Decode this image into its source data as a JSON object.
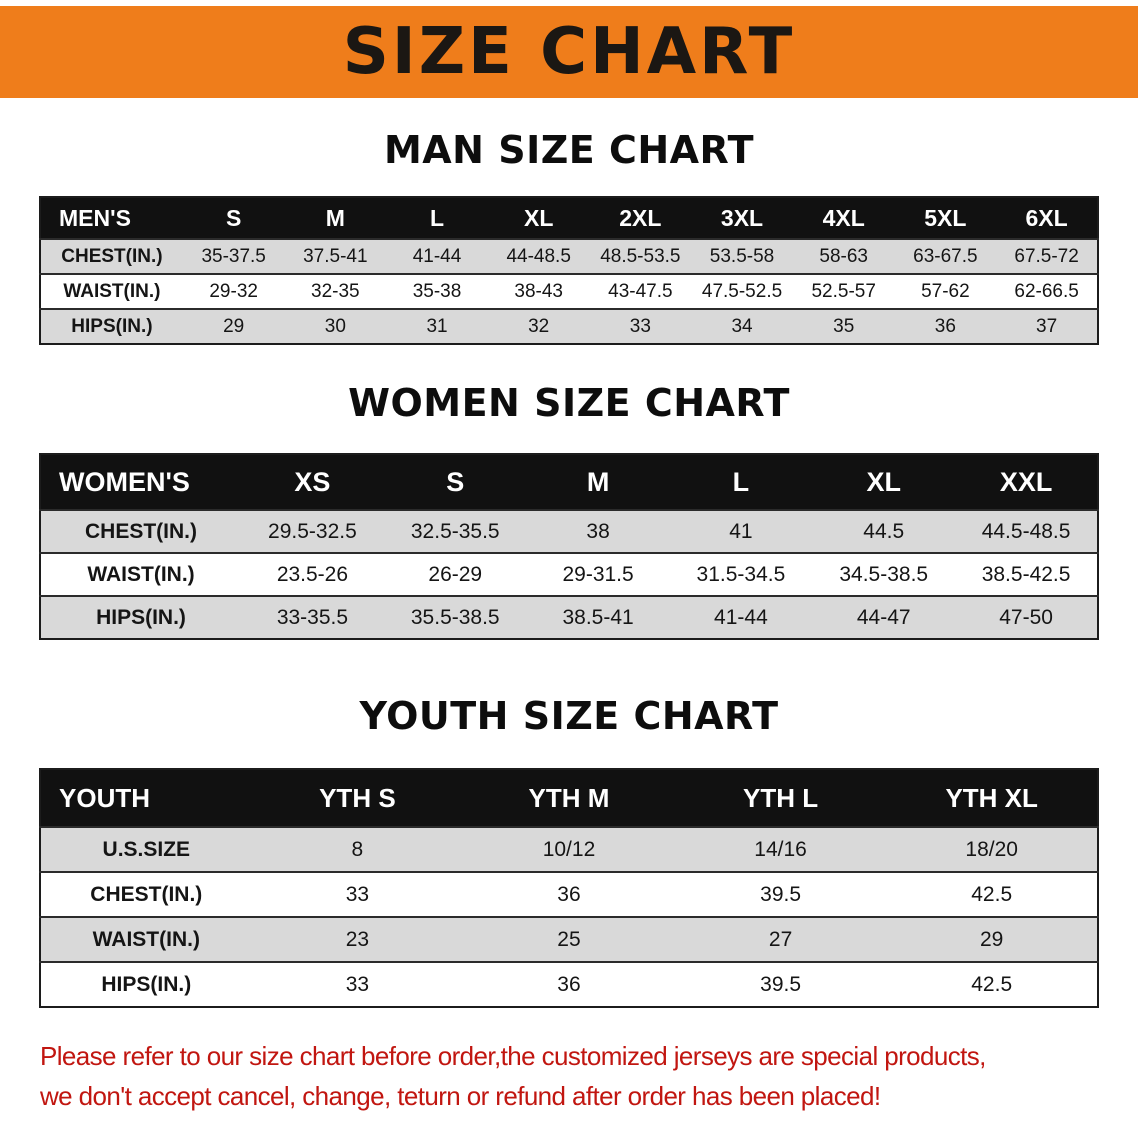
{
  "banner": {
    "title": "SIZE CHART"
  },
  "sections": [
    {
      "heading": "MAN SIZE CHART",
      "table": {
        "header": [
          "MEN'S",
          "S",
          "M",
          "L",
          "XL",
          "2XL",
          "3XL",
          "4XL",
          "5XL",
          "6XL"
        ],
        "rows": [
          [
            "CHEST(IN.)",
            "35-37.5",
            "37.5-41",
            "41-44",
            "44-48.5",
            "48.5-53.5",
            "53.5-58",
            "58-63",
            "63-67.5",
            "67.5-72"
          ],
          [
            "WAIST(IN.)",
            "29-32",
            "32-35",
            "35-38",
            "38-43",
            "43-47.5",
            "47.5-52.5",
            "52.5-57",
            "57-62",
            "62-66.5"
          ],
          [
            "HIPS(IN.)",
            "29",
            "30",
            "31",
            "32",
            "33",
            "34",
            "35",
            "36",
            "37"
          ]
        ]
      }
    },
    {
      "heading": "WOMEN SIZE CHART",
      "table": {
        "header": [
          "WOMEN'S",
          "XS",
          "S",
          "M",
          "L",
          "XL",
          "XXL"
        ],
        "rows": [
          [
            "CHEST(IN.)",
            "29.5-32.5",
            "32.5-35.5",
            "38",
            "41",
            "44.5",
            "44.5-48.5"
          ],
          [
            "WAIST(IN.)",
            "23.5-26",
            "26-29",
            "29-31.5",
            "31.5-34.5",
            "34.5-38.5",
            "38.5-42.5"
          ],
          [
            "HIPS(IN.)",
            "33-35.5",
            "35.5-38.5",
            "38.5-41",
            "41-44",
            "44-47",
            "47-50"
          ]
        ]
      }
    },
    {
      "heading": "YOUTH SIZE CHART",
      "table": {
        "header": [
          "YOUTH",
          "YTH S",
          "YTH M",
          "YTH L",
          "YTH XL"
        ],
        "rows": [
          [
            "U.S.SIZE",
            "8",
            "10/12",
            "14/16",
            "18/20"
          ],
          [
            "CHEST(IN.)",
            "33",
            "36",
            "39.5",
            "42.5"
          ],
          [
            "WAIST(IN.)",
            "23",
            "25",
            "27",
            "29"
          ],
          [
            "HIPS(IN.)",
            "33",
            "36",
            "39.5",
            "42.5"
          ]
        ]
      }
    }
  ],
  "notice": {
    "line1": "Please refer to our size chart before order,the customized jerseys are special products,",
    "line2": "we don't accept cancel, change, teturn or refund after order has been placed!"
  },
  "colors": {
    "banner_bg": "#ef7d1b",
    "banner_text": "#1b1713",
    "heading_text": "#0d0d0d",
    "table_header_bg": "#111111",
    "table_header_text": "#ffffff",
    "row_shaded": "#d9d9d9",
    "row_plain": "#ffffff",
    "table_border": "#1c1c1c",
    "notice_text": "#c11610"
  }
}
